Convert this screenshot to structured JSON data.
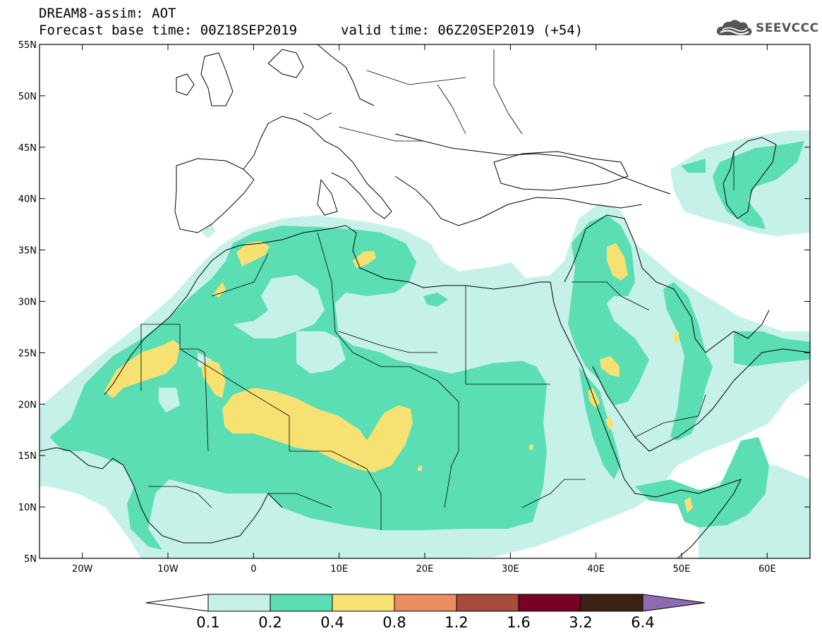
{
  "header": {
    "title_line1": "DREAM8-assim: AOT",
    "title_line2": "Forecast base time: 00Z18SEP2019",
    "valid_time": "valid time: 06Z20SEP2019 (+54)",
    "logo_text": "SEEVCCC",
    "logo_icon": "cloud-icon"
  },
  "map": {
    "lon_range": [
      -25,
      65
    ],
    "lat_range": [
      5,
      55
    ],
    "lat_ticks": [
      "55N",
      "50N",
      "45N",
      "40N",
      "35N",
      "30N",
      "25N",
      "20N",
      "15N",
      "10N",
      "5N"
    ],
    "lon_ticks": [
      "20W",
      "10W",
      "0",
      "10E",
      "20E",
      "30E",
      "40E",
      "50E",
      "60E"
    ],
    "field_colors": {
      "aot_0_1_0_2": "#c5f1e9",
      "aot_0_2_0_4": "#5bdeb4",
      "aot_0_4_0_8": "#f7e173"
    }
  },
  "colorbar": {
    "levels": [
      "0.1",
      "0.2",
      "0.4",
      "0.8",
      "1.2",
      "1.6",
      "3.2",
      "6.4"
    ],
    "colors": [
      "#c5f1e9",
      "#5bdeb4",
      "#f7e173",
      "#eb8c63",
      "#a84a3c",
      "#7a0024",
      "#3b2416"
    ],
    "under_color": "#ffffff",
    "over_color": "#8e6bb0"
  }
}
